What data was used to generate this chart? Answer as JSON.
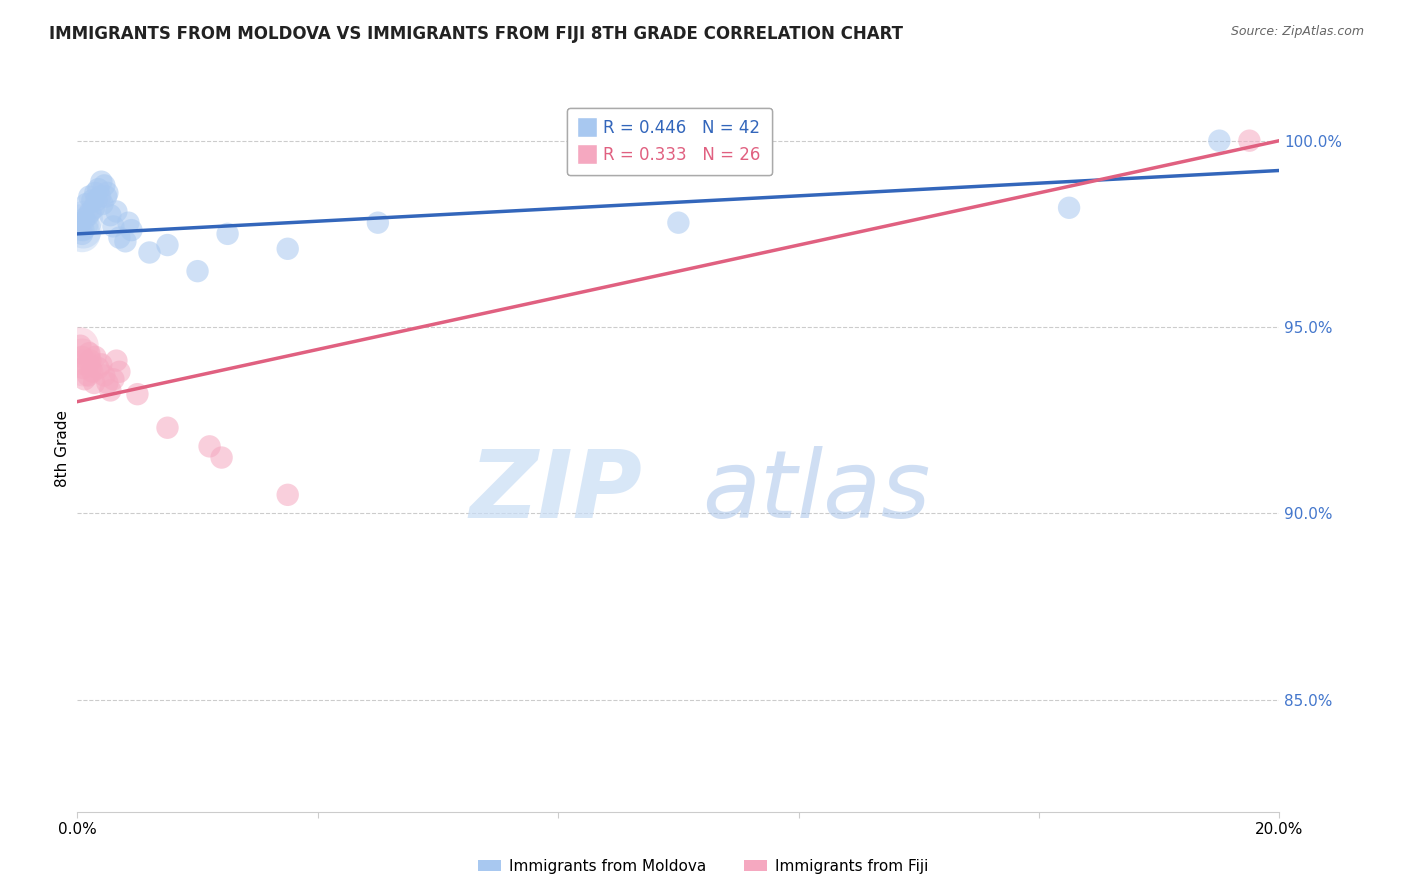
{
  "title": "IMMIGRANTS FROM MOLDOVA VS IMMIGRANTS FROM FIJI 8TH GRADE CORRELATION CHART",
  "source": "Source: ZipAtlas.com",
  "ylabel": "8th Grade",
  "ylabel_vals": [
    85.0,
    90.0,
    95.0,
    100.0
  ],
  "xlim": [
    0.0,
    20.0
  ],
  "ylim": [
    82.0,
    101.5
  ],
  "legend_label1": "R = 0.446   N = 42",
  "legend_label2": "R = 0.333   N = 26",
  "legend_item1": "Immigrants from Moldova",
  "legend_item2": "Immigrants from Fiji",
  "blue_color": "#a8c8f0",
  "pink_color": "#f5a8c0",
  "blue_line_color": "#3366bb",
  "pink_line_color": "#e06080",
  "moldova_x": [
    0.05,
    0.08,
    0.1,
    0.12,
    0.15,
    0.18,
    0.2,
    0.22,
    0.25,
    0.28,
    0.3,
    0.32,
    0.35,
    0.38,
    0.4,
    0.42,
    0.45,
    0.48,
    0.5,
    0.55,
    0.6,
    0.65,
    0.7,
    0.8,
    0.85,
    0.9,
    1.2,
    1.5,
    2.0,
    2.5,
    3.5,
    5.0,
    10.0,
    16.5,
    19.0
  ],
  "moldova_y": [
    97.8,
    97.5,
    97.6,
    97.9,
    98.3,
    98.0,
    98.5,
    98.1,
    98.4,
    98.2,
    98.6,
    98.4,
    98.7,
    98.5,
    98.9,
    98.3,
    98.8,
    98.5,
    98.6,
    98.0,
    97.7,
    98.1,
    97.4,
    97.3,
    97.8,
    97.6,
    97.0,
    97.2,
    96.5,
    97.5,
    97.1,
    97.8,
    97.8,
    98.2,
    100.0
  ],
  "fiji_x": [
    0.05,
    0.08,
    0.1,
    0.12,
    0.15,
    0.18,
    0.2,
    0.22,
    0.25,
    0.28,
    0.3,
    0.35,
    0.4,
    0.45,
    0.5,
    0.55,
    0.6,
    0.65,
    0.7,
    1.0,
    1.5,
    2.2,
    2.4,
    3.5,
    19.5
  ],
  "fiji_y": [
    94.5,
    94.2,
    93.9,
    93.6,
    94.0,
    93.7,
    94.3,
    94.1,
    93.8,
    93.5,
    94.2,
    93.9,
    94.0,
    93.7,
    93.5,
    93.3,
    93.6,
    94.1,
    93.8,
    93.2,
    92.3,
    91.8,
    91.5,
    90.5,
    100.0
  ],
  "watermark_zip": "ZIP",
  "watermark_atlas": "atlas",
  "grid_color": "#cccccc",
  "background_color": "#ffffff",
  "title_fontsize": 12,
  "source_fontsize": 9,
  "tick_fontsize": 11,
  "legend_fontsize": 12
}
